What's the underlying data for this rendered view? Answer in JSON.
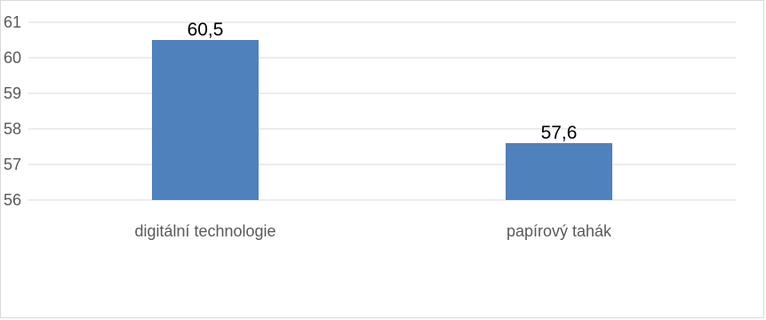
{
  "chart_data": {
    "type": "bar",
    "categories": [
      "digitální technologie",
      "papírový tahák"
    ],
    "values": [
      60.5,
      57.6
    ],
    "data_labels": [
      "60,5",
      "57,6"
    ],
    "title": "",
    "xlabel": "",
    "ylabel": "",
    "ylim": [
      56,
      61
    ],
    "yticks": [
      56,
      57,
      58,
      59,
      60,
      61
    ],
    "grid": true,
    "legend": "none",
    "bar_color": "#4f81bd"
  }
}
